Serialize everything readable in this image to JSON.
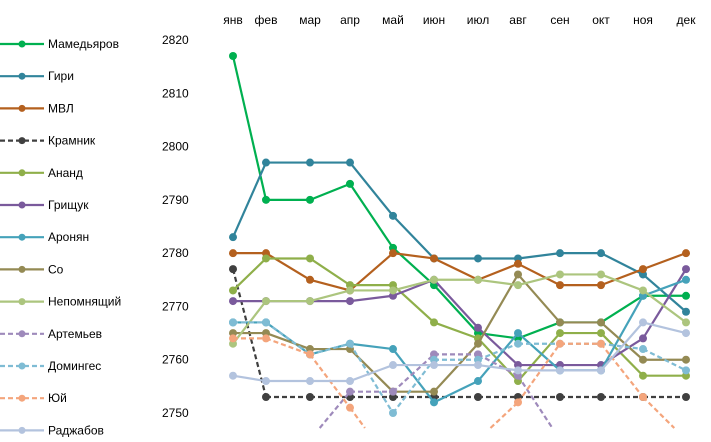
{
  "chart_data": {
    "type": "line",
    "title": "",
    "xlabel": "",
    "ylabel": "",
    "categories": [
      "янв",
      "фев",
      "мар",
      "апр",
      "май",
      "июн",
      "июл",
      "авг",
      "сен",
      "окт",
      "ноя",
      "дек"
    ],
    "y_ticks": [
      "2820",
      "2810",
      "2800",
      "2790",
      "2780",
      "2770",
      "2760",
      "2750"
    ],
    "ylim": [
      2750,
      2820
    ],
    "grid": false,
    "legend_position": "left",
    "series": [
      {
        "name": "Мамедьяров",
        "color": "#00b050",
        "dashed": false,
        "values": [
          2817,
          2790,
          2790,
          2793,
          2781,
          2774,
          2765,
          2764,
          2767,
          2767,
          2772,
          2772
        ]
      },
      {
        "name": "Гири",
        "color": "#31849b",
        "dashed": false,
        "values": [
          2783,
          2797,
          2797,
          2797,
          2787,
          2779,
          2779,
          2779,
          2780,
          2780,
          2776,
          2769
        ]
      },
      {
        "name": "МВЛ",
        "color": "#b4601e",
        "dashed": false,
        "values": [
          2780,
          2780,
          2775,
          2773,
          2780,
          2779,
          2775,
          2778,
          2774,
          2774,
          2777,
          2780
        ]
      },
      {
        "name": "Крамник",
        "color": "#404040",
        "dashed": true,
        "values": [
          2777,
          2753,
          2753,
          2753,
          2753,
          2753,
          2753,
          2753,
          2753,
          2753,
          2753,
          2753
        ]
      },
      {
        "name": "Ананд",
        "color": "#8faf4a",
        "dashed": false,
        "values": [
          2773,
          2779,
          2779,
          2774,
          2774,
          2767,
          2764,
          2756,
          2765,
          2765,
          2757,
          2757
        ]
      },
      {
        "name": "Грищук",
        "color": "#7a5a9c",
        "dashed": false,
        "values": [
          2771,
          2771,
          2771,
          2771,
          2772,
          2775,
          2766,
          2759,
          2759,
          2759,
          2764,
          2777
        ]
      },
      {
        "name": "Аронян",
        "color": "#45a2ba",
        "dashed": false,
        "values": [
          2767,
          2767,
          2761,
          2763,
          2762,
          2752,
          2756,
          2765,
          2758,
          2758,
          2772,
          2775
        ]
      },
      {
        "name": "Со",
        "color": "#948a54",
        "dashed": false,
        "values": [
          2765,
          2765,
          2762,
          2762,
          2754,
          2754,
          2763,
          2776,
          2767,
          2767,
          2760,
          2760
        ]
      },
      {
        "name": "Непомнящий",
        "color": "#acc57e",
        "dashed": false,
        "values": [
          2763,
          2771,
          2771,
          2773,
          2773,
          2775,
          2775,
          2774,
          2776,
          2776,
          2773,
          2767
        ]
      },
      {
        "name": "Артемьев",
        "color": "#9e8abb",
        "dashed": true,
        "values": [
          null,
          null,
          2745,
          2754,
          2754,
          2761,
          2761,
          2757,
          2745,
          null,
          null,
          null
        ]
      },
      {
        "name": "Домингес",
        "color": "#7fbcd4",
        "dashed": true,
        "values": [
          2767,
          2767,
          2761,
          2763,
          2750,
          2760,
          2760,
          2763,
          2763,
          2763,
          2762,
          2758
        ]
      },
      {
        "name": "Юй",
        "color": "#f4a57c",
        "dashed": true,
        "values": [
          2764,
          2764,
          2761,
          2751,
          2740,
          null,
          2745,
          2752,
          2763,
          2763,
          2753,
          2745
        ]
      },
      {
        "name": "Раджабов",
        "color": "#b3c3de",
        "dashed": false,
        "values": [
          2757,
          2756,
          2756,
          2756,
          2759,
          2759,
          2759,
          2758,
          2758,
          2758,
          2767,
          2765
        ]
      }
    ]
  }
}
